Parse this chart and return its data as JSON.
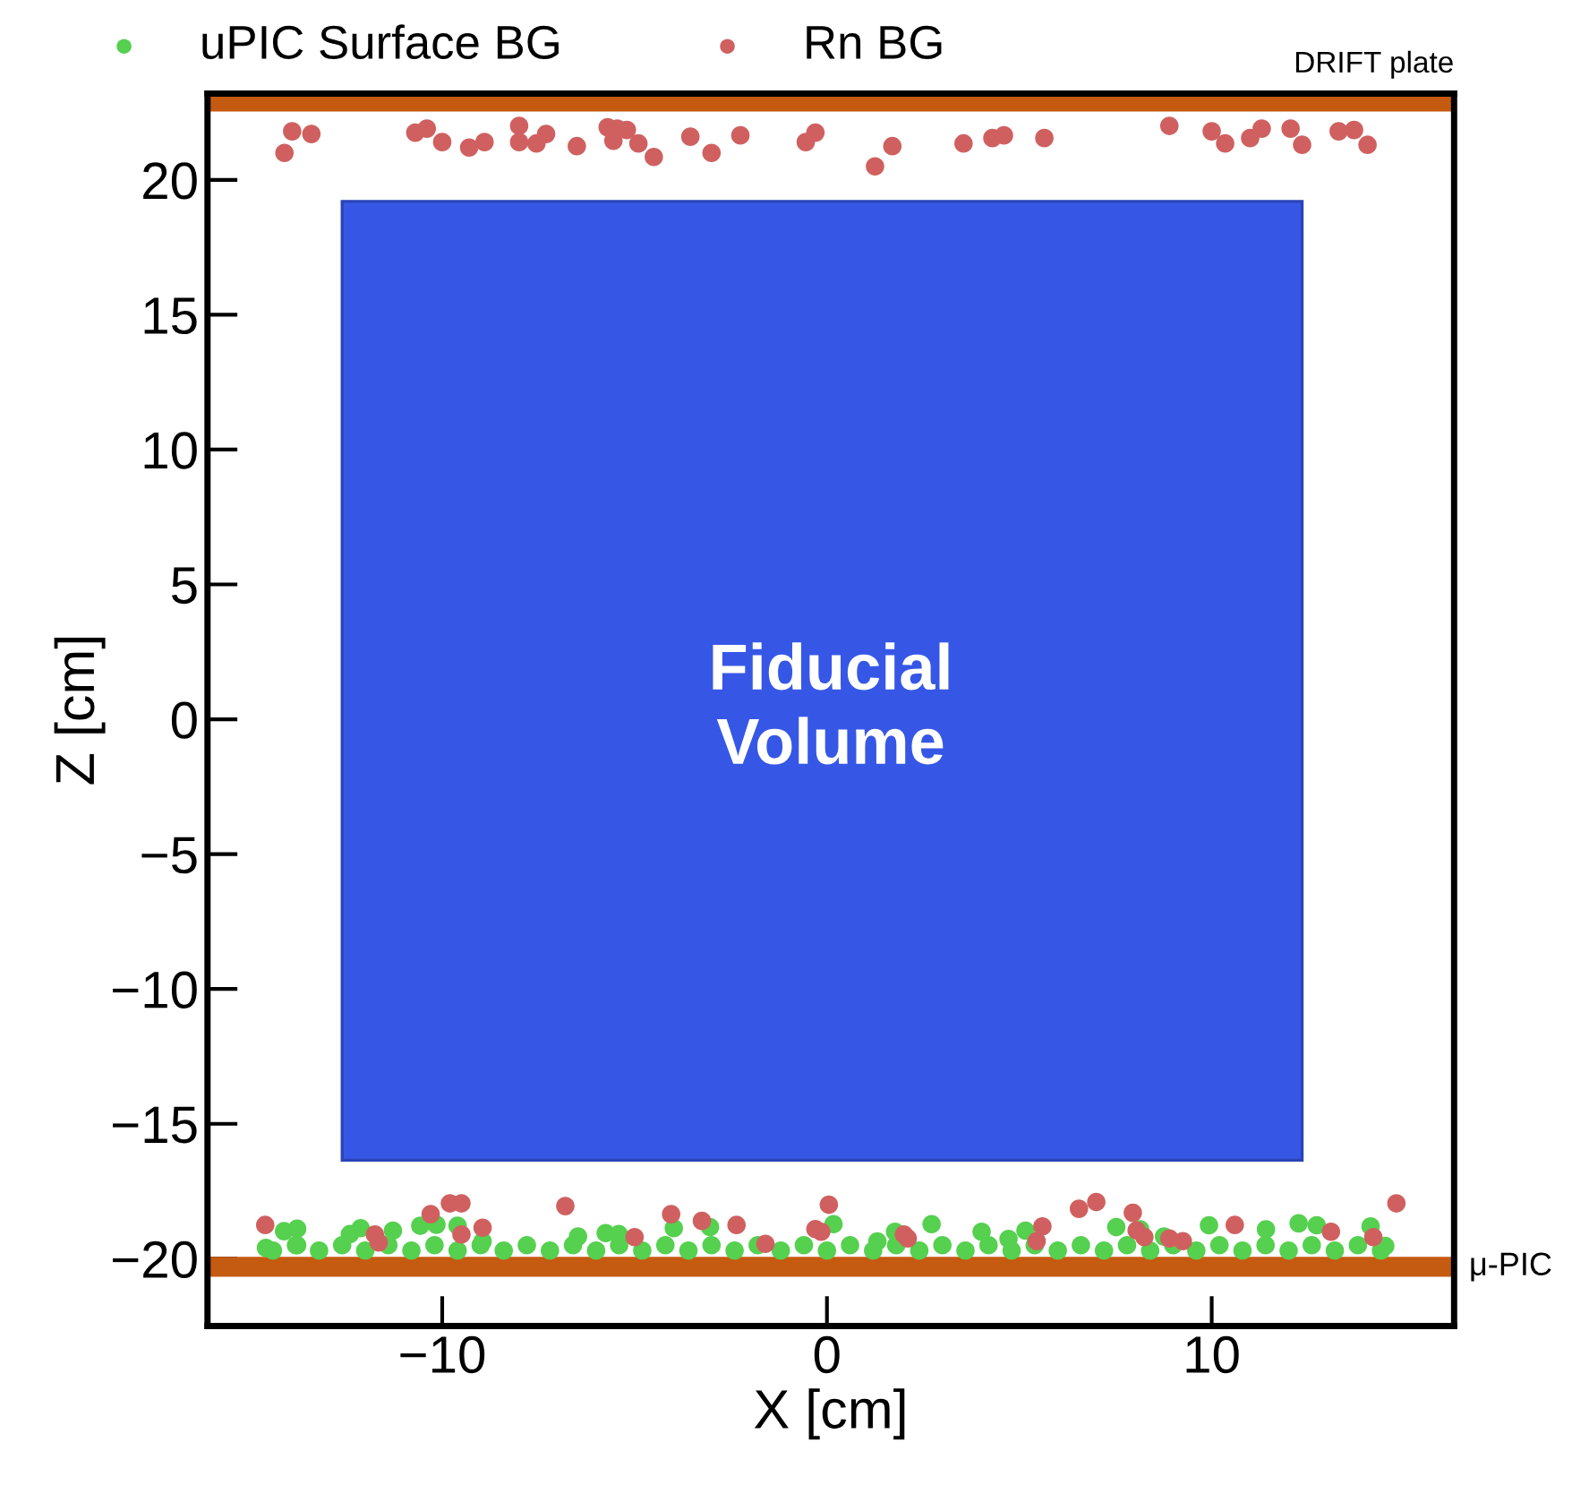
{
  "chart_data": {
    "type": "scatter",
    "xlabel": "X [cm]",
    "ylabel": "Z [cm]",
    "xlim": [
      -16.1,
      16.3
    ],
    "ylim": [
      -22.5,
      23.2
    ],
    "xticks": [
      {
        "value": -10,
        "label": "−10"
      },
      0,
      10
    ],
    "yticks": [
      {
        "value": -20,
        "label": "−20"
      },
      {
        "value": -15,
        "label": "−15"
      },
      {
        "value": -10,
        "label": "−10"
      },
      {
        "value": -5,
        "label": "−5"
      },
      0,
      5,
      10,
      15,
      20
    ],
    "grid": false,
    "legend": "top",
    "marker": "circle",
    "annotations": [
      "Fiducial\nVolume"
    ],
    "ref_lines": [
      {
        "axis": "y",
        "value": 22.9,
        "label": "DRIFT plate",
        "color": "#c55a11"
      },
      {
        "axis": "y",
        "value": -20.3,
        "label": "μ-PIC",
        "color": "#c55a11"
      }
    ],
    "series": [
      {
        "type": "area",
        "color": "#3657e6",
        "marker": "none",
        "x": [
          -12.6,
          -12.6,
          12.35,
          12.35
        ],
        "values": [
          -16.35,
          19.2,
          19.2,
          -16.35
        ]
      },
      {
        "name": "uPIC Surface BG",
        "color": "#55d04f",
        "x": [
          -14.4,
          -13.8,
          -13.2,
          -12.6,
          -12.0,
          -11.4,
          -10.8,
          -10.2,
          -9.6,
          -9.0,
          -8.4,
          -7.8,
          -7.2,
          -6.6,
          -6.0,
          -5.4,
          -4.8,
          -4.2,
          -3.6,
          -3.0,
          -2.4,
          -1.8,
          -1.2,
          -0.6,
          0.0,
          0.6,
          1.2,
          1.8,
          2.4,
          3.0,
          3.6,
          4.2,
          4.8,
          5.4,
          6.0,
          6.6,
          7.2,
          7.8,
          8.4,
          9.0,
          9.6,
          10.2,
          10.8,
          11.4,
          12.0,
          12.6,
          13.2,
          13.8,
          14.4,
          -14.58,
          -14.11,
          -13.77,
          -13.77,
          -12.4,
          -12.12,
          -11.28,
          -10.57,
          -10.15,
          -9.6,
          -8.95,
          -6.47,
          -5.75,
          -5.41,
          -3.98,
          -3.04,
          0.17,
          1.31,
          1.77,
          2.72,
          4.02,
          4.72,
          5.16,
          7.52,
          8.14,
          8.76,
          9.93,
          11.41,
          12.26,
          12.73,
          14.13,
          14.51
        ],
        "values": [
          -19.7,
          -19.5,
          -19.7,
          -19.5,
          -19.7,
          -19.5,
          -19.7,
          -19.5,
          -19.7,
          -19.5,
          -19.7,
          -19.5,
          -19.7,
          -19.5,
          -19.7,
          -19.5,
          -19.7,
          -19.5,
          -19.7,
          -19.5,
          -19.7,
          -19.5,
          -19.7,
          -19.5,
          -19.7,
          -19.5,
          -19.7,
          -19.5,
          -19.7,
          -19.5,
          -19.7,
          -19.5,
          -19.7,
          -19.5,
          -19.7,
          -19.5,
          -19.7,
          -19.5,
          -19.7,
          -19.5,
          -19.7,
          -19.5,
          -19.7,
          -19.5,
          -19.7,
          -19.5,
          -19.7,
          -19.5,
          -19.7,
          -19.6,
          -18.98,
          -18.89,
          -19.5,
          -19.09,
          -18.87,
          -18.96,
          -18.78,
          -18.74,
          -18.78,
          -19.36,
          -19.18,
          -19.05,
          -19.09,
          -18.87,
          -18.83,
          -18.72,
          -19.36,
          -19.0,
          -18.72,
          -19.0,
          -19.27,
          -18.96,
          -18.83,
          -18.91,
          -19.18,
          -18.76,
          -18.91,
          -18.69,
          -18.76,
          -18.8,
          -19.53
        ]
      },
      {
        "name": "Rn BG",
        "color": "#d06060",
        "x": [
          -13.9,
          -13.4,
          -14.1,
          -10.7,
          -10.4,
          -10.0,
          -9.3,
          -8.9,
          -8.0,
          -8.0,
          -7.55,
          -7.3,
          -6.5,
          -5.7,
          -5.55,
          -5.45,
          -5.2,
          -4.9,
          -4.5,
          -3.55,
          -3.0,
          -2.25,
          -0.55,
          -0.3,
          1.25,
          1.7,
          3.55,
          4.3,
          4.6,
          5.65,
          8.9,
          10.0,
          10.35,
          11.0,
          11.3,
          12.05,
          12.35,
          13.3,
          13.7,
          14.05,
          -14.6,
          -11.75,
          -11.65,
          -10.3,
          -9.8,
          -9.5,
          -9.5,
          -8.95,
          -6.8,
          -5.0,
          -4.05,
          -3.25,
          -2.35,
          -1.6,
          -0.3,
          0.05,
          -0.15,
          2.0,
          2.1,
          5.6,
          5.45,
          6.55,
          7.0,
          7.95,
          8.05,
          8.25,
          8.9,
          9.25,
          10.6,
          13.1,
          14.2,
          14.8
        ],
        "values": [
          21.8,
          21.7,
          21.0,
          21.75,
          21.9,
          21.4,
          21.2,
          21.4,
          22.0,
          21.4,
          21.35,
          21.7,
          21.25,
          21.95,
          21.45,
          21.9,
          21.85,
          21.35,
          20.85,
          21.6,
          21.0,
          21.65,
          21.4,
          21.75,
          20.5,
          21.25,
          21.35,
          21.55,
          21.65,
          21.55,
          22.0,
          21.8,
          21.35,
          21.55,
          21.9,
          21.9,
          21.3,
          21.8,
          21.85,
          21.3,
          -18.75,
          -19.1,
          -19.4,
          -18.35,
          -17.95,
          -17.95,
          -19.1,
          -18.85,
          -18.05,
          -19.2,
          -18.35,
          -18.6,
          -18.75,
          -19.45,
          -18.9,
          -18.0,
          -19.0,
          -19.1,
          -19.25,
          -18.8,
          -19.35,
          -18.15,
          -17.9,
          -18.3,
          -18.95,
          -19.2,
          -19.25,
          -19.35,
          -18.75,
          -19.0,
          -19.2,
          -17.95
        ]
      }
    ]
  }
}
